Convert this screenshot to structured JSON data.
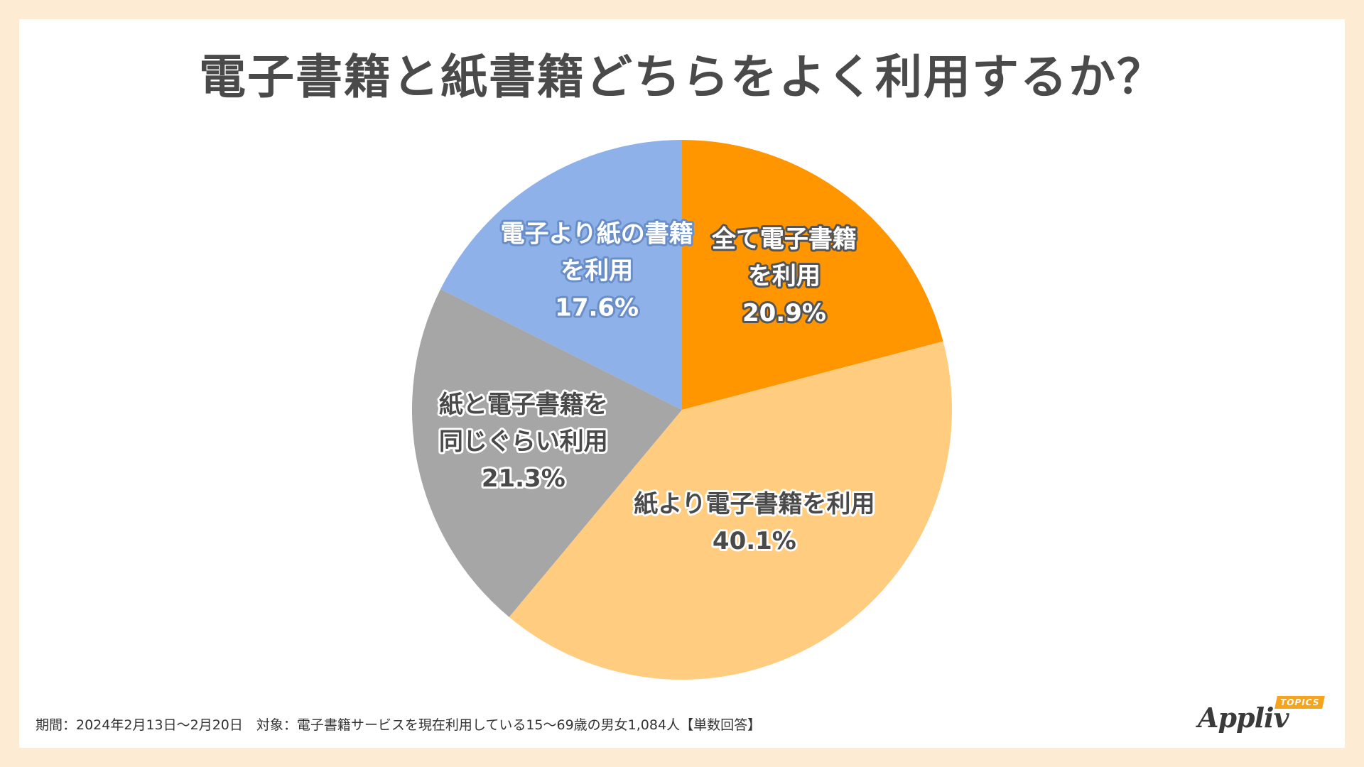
{
  "title": "電子書籍と紙書籍どちらをよく利用するか？",
  "chart_data": {
    "type": "pie",
    "title": "電子書籍と紙書籍どちらをよく利用するか？",
    "start": "12 o'clock",
    "direction": "clockwise",
    "slices": [
      {
        "label_lines": [
          "全て電子書籍",
          "を利用"
        ],
        "value": 20.9,
        "value_label": "20.9%",
        "color": "#ff9600",
        "text_fill": "#ffffff",
        "text_stroke": "#555555"
      },
      {
        "label_lines": [
          "紙より電子書籍を利用"
        ],
        "value": 40.1,
        "value_label": "40.1%",
        "color": "#ffcc80",
        "text_fill": "#4a4a4a",
        "text_stroke": "#ffffff"
      },
      {
        "label_lines": [
          "紙と電子書籍を",
          "同じぐらい利用"
        ],
        "value": 21.3,
        "value_label": "21.3%",
        "color": "#a6a6a6",
        "text_fill": "#4a4a4a",
        "text_stroke": "#ffffff"
      },
      {
        "label_lines": [
          "電子より紙の書籍",
          "を利用"
        ],
        "value": 17.6,
        "value_label": "17.6%",
        "color": "#8db1e8",
        "text_fill": "#ffffff",
        "text_stroke": "#6a8fc8"
      }
    ]
  },
  "footnote": "期間：2024年2月13日～2月20日　対象：電子書籍サービスを現在利用している15～69歳の男女1,084人【単数回答】",
  "logo": {
    "main": "Appliv",
    "badge": "TOPICS",
    "badge_color": "#f7a31b"
  }
}
